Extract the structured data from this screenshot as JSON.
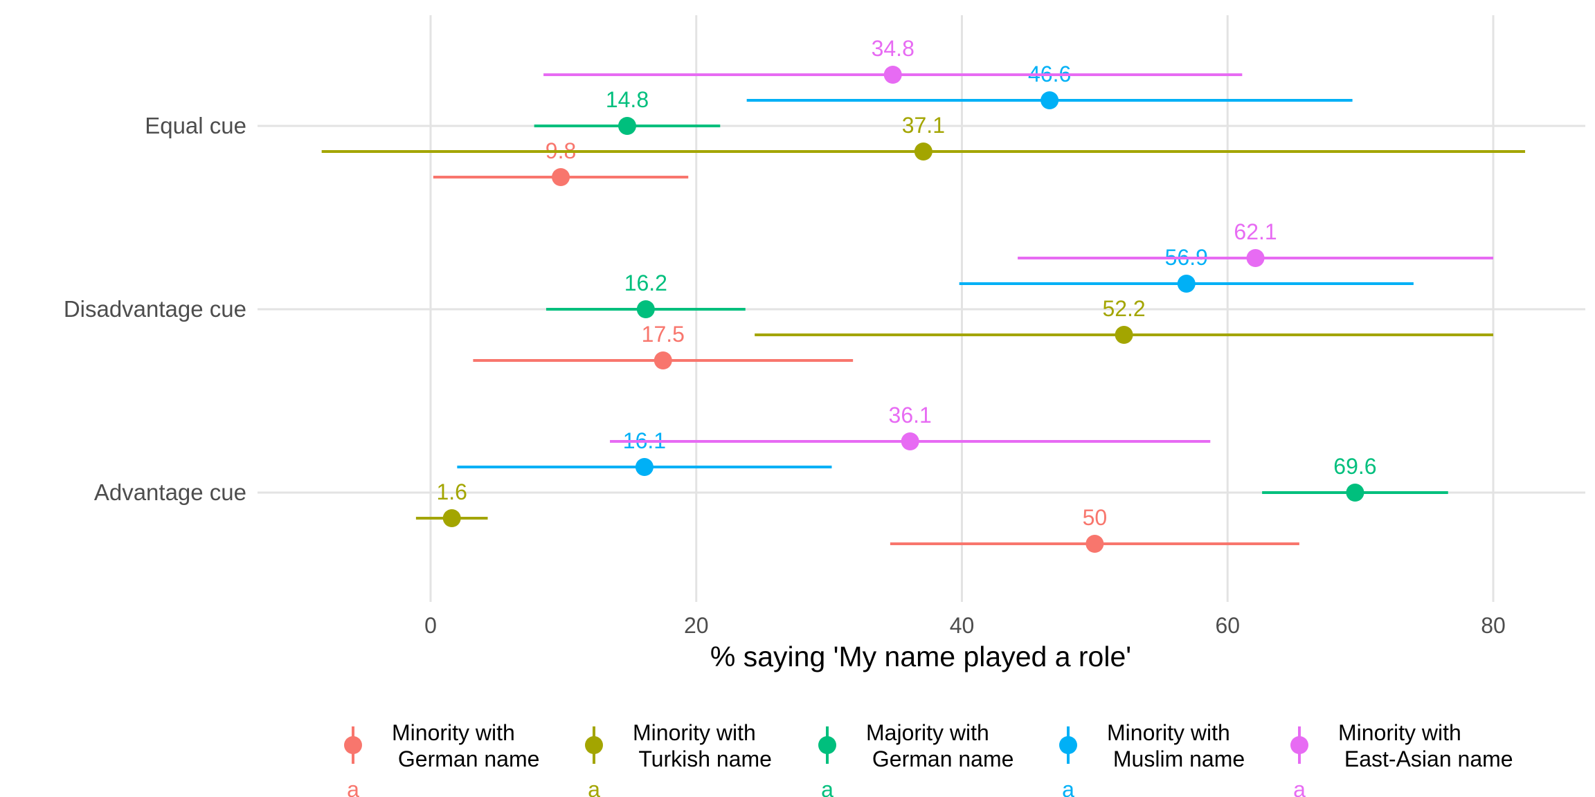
{
  "chart_data": {
    "type": "scatter",
    "subtype": "dot-and-whisker",
    "xlabel": "% saying 'My name played a role'",
    "ylabel": "",
    "xlim": [
      -12,
      87
    ],
    "xticks": [
      0,
      20,
      40,
      60,
      80
    ],
    "grid": true,
    "legend_position": "bottom",
    "categories": [
      "Equal cue",
      "Disadvantage cue",
      "Advantage cue"
    ],
    "series": [
      {
        "name": "Minority with\n German name",
        "color": "#F8766D",
        "points": [
          {
            "category": "Equal cue",
            "value": 9.8,
            "label": "9.8",
            "ci": [
              0.2,
              19.4
            ]
          },
          {
            "category": "Disadvantage cue",
            "value": 17.5,
            "label": "17.5",
            "ci": [
              3.2,
              31.8
            ]
          },
          {
            "category": "Advantage cue",
            "value": 50,
            "label": "50",
            "ci": [
              34.6,
              65.4
            ]
          }
        ]
      },
      {
        "name": "Minority with\n Turkish name",
        "color": "#A3A500",
        "points": [
          {
            "category": "Equal cue",
            "value": 37.1,
            "label": "37.1",
            "ci": [
              -8.2,
              82.4
            ]
          },
          {
            "category": "Disadvantage cue",
            "value": 52.2,
            "label": "52.2",
            "ci": [
              24.4,
              80.0
            ]
          },
          {
            "category": "Advantage cue",
            "value": 1.6,
            "label": "1.6",
            "ci": [
              -1.1,
              4.3
            ]
          }
        ]
      },
      {
        "name": "Majority with\n German name",
        "color": "#00BF7D",
        "points": [
          {
            "category": "Equal cue",
            "value": 14.8,
            "label": "14.8",
            "ci": [
              7.8,
              21.8
            ]
          },
          {
            "category": "Disadvantage cue",
            "value": 16.2,
            "label": "16.2",
            "ci": [
              8.7,
              23.7
            ]
          },
          {
            "category": "Advantage cue",
            "value": 69.6,
            "label": "69.6",
            "ci": [
              62.6,
              76.6
            ]
          }
        ]
      },
      {
        "name": "Minority with\n Muslim name",
        "color": "#00B0F6",
        "points": [
          {
            "category": "Equal cue",
            "value": 46.6,
            "label": "46.6",
            "ci": [
              23.8,
              69.4
            ]
          },
          {
            "category": "Disadvantage cue",
            "value": 56.9,
            "label": "56.9",
            "ci": [
              39.8,
              74.0
            ]
          },
          {
            "category": "Advantage cue",
            "value": 16.1,
            "label": "16.1",
            "ci": [
              2.0,
              30.2
            ]
          }
        ]
      },
      {
        "name": "Minority with\n East-Asian name",
        "color": "#E76BF3",
        "points": [
          {
            "category": "Equal cue",
            "value": 34.8,
            "label": "34.8",
            "ci": [
              8.5,
              61.1
            ]
          },
          {
            "category": "Disadvantage cue",
            "value": 62.1,
            "label": "62.1",
            "ci": [
              44.2,
              80.0
            ]
          },
          {
            "category": "Advantage cue",
            "value": 36.1,
            "label": "36.1",
            "ci": [
              13.5,
              58.7
            ]
          }
        ]
      }
    ],
    "legend_key_glyph": "a"
  }
}
